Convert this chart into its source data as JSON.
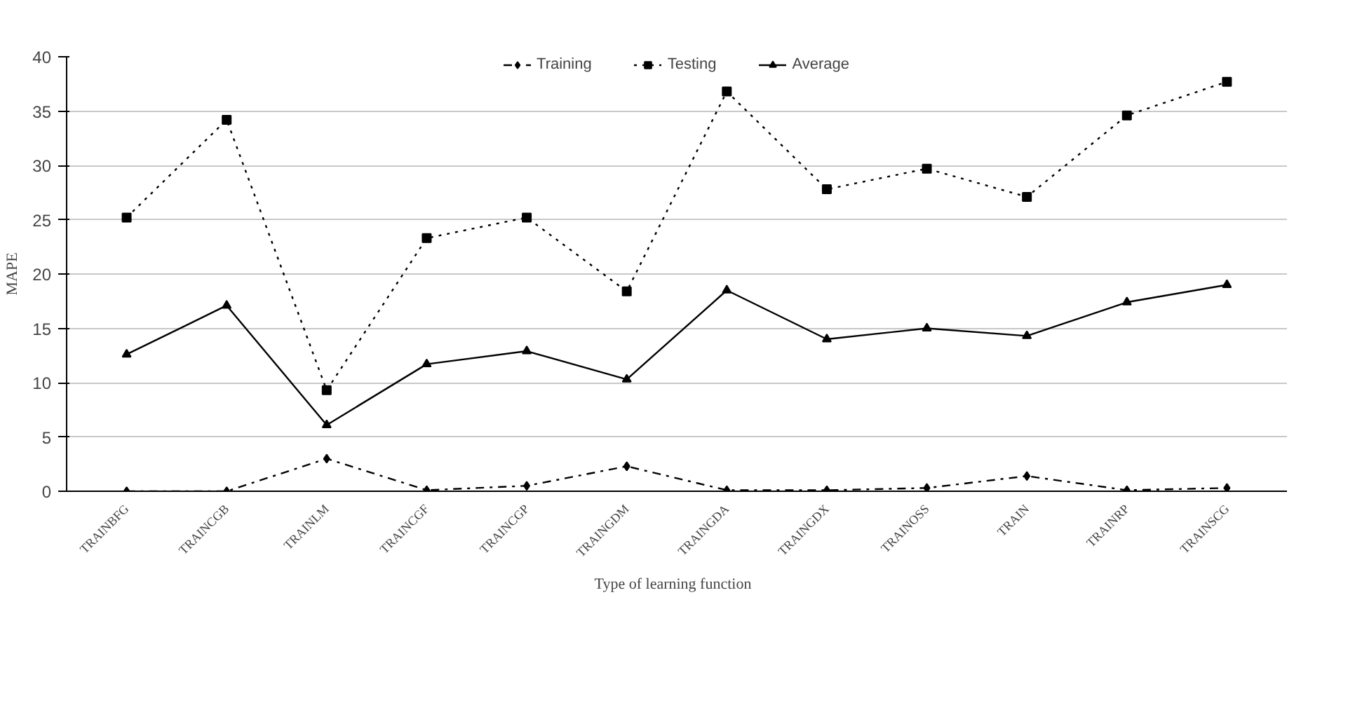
{
  "chart_data": {
    "type": "line",
    "xlabel": "Type of  learning  function",
    "ylabel": "MAPE",
    "categories": [
      "TRAINBFG",
      "TRAINCGB",
      "TRAINLM",
      "TRAINCGF",
      "TRAINCGP",
      "TRAINGDM",
      "TRAINGDA",
      "TRAINGDX",
      "TRAINOSS",
      "TRAIN",
      "TRAINRP",
      "TRAINSCG"
    ],
    "series": [
      {
        "name": "Training",
        "color": "#000000",
        "marker": "diamond",
        "line_style": "dashed",
        "values": [
          0,
          0,
          3.0,
          0.1,
          0.5,
          2.3,
          0.1,
          0.1,
          0.3,
          1.4,
          0.1,
          0.3
        ]
      },
      {
        "name": "Testing",
        "color": "#000000",
        "marker": "square",
        "line_style": "dotted",
        "values": [
          25.2,
          34.2,
          9.3,
          23.3,
          25.2,
          18.4,
          36.8,
          27.8,
          29.7,
          27.1,
          34.6,
          37.7
        ]
      },
      {
        "name": "Average",
        "color": "#000000",
        "marker": "triangle",
        "line_style": "solid",
        "values": [
          12.6,
          17.1,
          6.1,
          11.7,
          12.9,
          10.3,
          18.5,
          14.0,
          15.0,
          14.3,
          17.4,
          19.0
        ]
      }
    ],
    "ylim": [
      0,
      40
    ],
    "yticks": [
      0,
      5,
      10,
      15,
      20,
      25,
      30,
      35,
      40
    ],
    "grid": "y",
    "legend": "top"
  }
}
